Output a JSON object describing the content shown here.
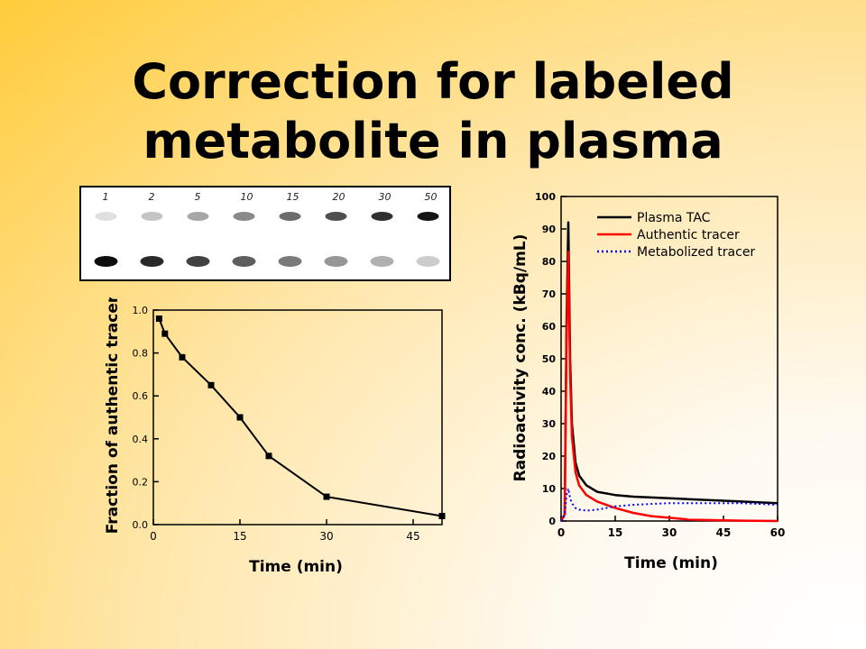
{
  "slide": {
    "title_line1": "Correction for labeled",
    "title_line2": "metabolite in plasma"
  },
  "gel": {
    "lane_labels": [
      "1",
      "2",
      "5",
      "10",
      "15",
      "20",
      "30",
      "50"
    ]
  },
  "chart_data": [
    {
      "type": "line",
      "xlabel": "Time (min)",
      "ylabel": "Fraction of authentic tracer",
      "xlim": [
        0,
        50
      ],
      "ylim": [
        0,
        1.0
      ],
      "xticks": [
        "0",
        "15",
        "30",
        "45"
      ],
      "yticks": [
        "0.0",
        "0.2",
        "0.4",
        "0.6",
        "0.8",
        "1.0"
      ],
      "grid": false,
      "series": [
        {
          "x": [
            1,
            2,
            5,
            10,
            15,
            20,
            30,
            50
          ],
          "y": [
            0.96,
            0.89,
            0.78,
            0.65,
            0.5,
            0.32,
            0.13,
            0.04
          ]
        }
      ]
    },
    {
      "type": "line",
      "xlabel": "Time (min)",
      "ylabel": "Radioactivity conc. (kBq/mL)",
      "xlim": [
        0,
        60
      ],
      "ylim": [
        0,
        100
      ],
      "xticks": [
        "0",
        "15",
        "30",
        "45",
        "60"
      ],
      "yticks": [
        "0",
        "10",
        "20",
        "30",
        "40",
        "50",
        "60",
        "70",
        "80",
        "90",
        "100"
      ],
      "legend_position": "top-right",
      "grid": false,
      "series": [
        {
          "name": "Plasma TAC",
          "color": "#000000",
          "x": [
            0,
            1,
            1.5,
            2,
            2.5,
            3,
            4,
            5,
            7,
            10,
            15,
            20,
            30,
            40,
            50,
            60
          ],
          "y": [
            0,
            2,
            60,
            92,
            50,
            30,
            18,
            14,
            11,
            9,
            8,
            7.5,
            7,
            6.5,
            6,
            5.5
          ]
        },
        {
          "name": "Authentic tracer",
          "color": "#ff0000",
          "x": [
            0,
            1,
            1.5,
            2,
            2.5,
            3,
            4,
            5,
            7,
            10,
            15,
            20,
            25,
            30,
            35,
            40,
            50,
            60
          ],
          "y": [
            0,
            2,
            55,
            83,
            45,
            26,
            15,
            11,
            8,
            6,
            4,
            2.5,
            1.5,
            1,
            0.5,
            0.3,
            0.1,
            0
          ]
        },
        {
          "name": "Metabolized tracer",
          "color": "#0000ff",
          "x": [
            0,
            1,
            1.5,
            2,
            2.5,
            3,
            4,
            5,
            7,
            10,
            15,
            20,
            30,
            40,
            50,
            60
          ],
          "y": [
            0,
            2,
            8,
            10,
            7,
            5.5,
            4,
            3.5,
            3.2,
            3.5,
            4.5,
            5,
            5.5,
            5.5,
            5.5,
            5
          ]
        }
      ]
    }
  ]
}
